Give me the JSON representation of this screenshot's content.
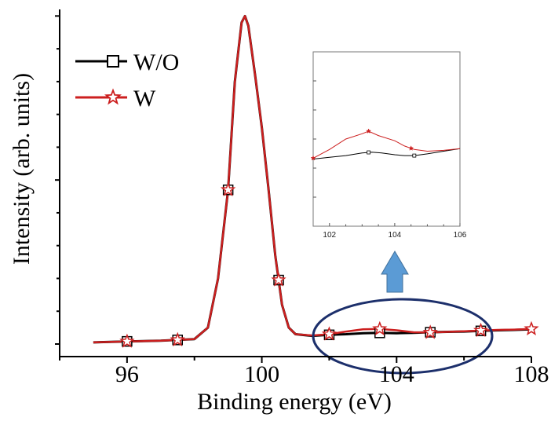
{
  "chart_data": {
    "type": "line",
    "xlabel": "Binding energy (eV)",
    "ylabel": "Intensity (arb. units)",
    "xlim": [
      94,
      108
    ],
    "ylim": [
      0,
      1.02
    ],
    "x_ticks": [
      "96",
      "100",
      "104",
      "108"
    ],
    "y_tick_labels": false,
    "legend": {
      "placement": "top-left"
    },
    "colors": {
      "W/O": "#000000",
      "W": "#cc1f1f",
      "annotation": "#1c2f6b",
      "arrow": "#5b9bd5"
    },
    "series": [
      {
        "name": "W/O",
        "marker": "square",
        "x": [
          95,
          96,
          97,
          98,
          98.4,
          98.7,
          99,
          99.2,
          99.4,
          99.5,
          99.6,
          99.8,
          100,
          100.2,
          100.4,
          100.6,
          100.8,
          101,
          101.5,
          102,
          102.5,
          103,
          103.5,
          104,
          104.5,
          105,
          105.5,
          106,
          106.5,
          107,
          107.5,
          108
        ],
        "y": [
          0.005,
          0.008,
          0.01,
          0.015,
          0.05,
          0.2,
          0.47,
          0.8,
          0.98,
          1.0,
          0.97,
          0.82,
          0.66,
          0.47,
          0.27,
          0.12,
          0.05,
          0.03,
          0.025,
          0.028,
          0.03,
          0.033,
          0.034,
          0.033,
          0.034,
          0.036,
          0.037,
          0.038,
          0.04,
          0.042,
          0.043,
          0.045
        ],
        "marker_x": [
          96,
          97.5,
          99,
          100.5,
          102,
          103.5,
          105,
          106.5
        ]
      },
      {
        "name": "W",
        "marker": "star",
        "x": [
          95,
          96,
          97,
          98,
          98.4,
          98.7,
          99,
          99.2,
          99.4,
          99.5,
          99.6,
          99.8,
          100,
          100.2,
          100.4,
          100.6,
          100.8,
          101,
          101.5,
          102,
          102.5,
          103,
          103.5,
          104,
          104.5,
          105,
          105.5,
          106,
          106.5,
          107,
          107.5,
          108
        ],
        "y": [
          0.005,
          0.008,
          0.01,
          0.015,
          0.05,
          0.2,
          0.47,
          0.8,
          0.98,
          1.0,
          0.97,
          0.82,
          0.66,
          0.47,
          0.27,
          0.12,
          0.05,
          0.03,
          0.026,
          0.03,
          0.038,
          0.045,
          0.046,
          0.042,
          0.036,
          0.035,
          0.037,
          0.039,
          0.041,
          0.043,
          0.044,
          0.046
        ],
        "marker_x": [
          96,
          97.5,
          99,
          100.5,
          102,
          103.5,
          105,
          106.5,
          108
        ]
      }
    ],
    "inset": {
      "xlim": [
        101.5,
        106
      ],
      "ylim": [
        0,
        1
      ],
      "x_ticks": [
        "102",
        "104",
        "106"
      ],
      "series": [
        {
          "name": "W/O",
          "x": [
            101.5,
            102,
            102.5,
            103,
            103.3,
            103.6,
            104,
            104.3,
            104.6,
            105,
            105.5,
            106
          ],
          "y": [
            0.385,
            0.395,
            0.405,
            0.42,
            0.425,
            0.42,
            0.41,
            0.405,
            0.405,
            0.415,
            0.43,
            0.445
          ],
          "marker_x": [
            103.2,
            104.6
          ]
        },
        {
          "name": "W",
          "x": [
            101.5,
            102,
            102.5,
            103,
            103.2,
            103.5,
            104,
            104.3,
            104.6,
            105,
            105.5,
            106
          ],
          "y": [
            0.39,
            0.44,
            0.5,
            0.53,
            0.545,
            0.52,
            0.49,
            0.46,
            0.44,
            0.43,
            0.435,
            0.445
          ],
          "marker_x": [
            101.5,
            103.2,
            104.5
          ]
        }
      ]
    }
  }
}
